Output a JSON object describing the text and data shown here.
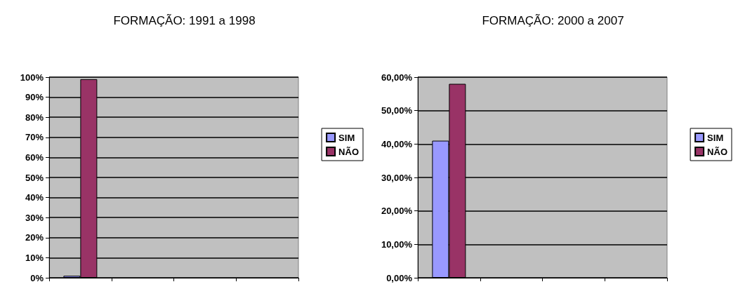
{
  "chart_data": [
    {
      "type": "bar",
      "title": "FORMAÇÃO: 1991 a 1998",
      "categories": [
        null,
        null,
        null,
        null
      ],
      "series": [
        {
          "name": "SIM",
          "color": "#9999ff",
          "values": [
            1,
            null,
            null,
            null
          ]
        },
        {
          "name": "NÃO",
          "color": "#993366",
          "values": [
            99,
            null,
            null,
            null
          ]
        }
      ],
      "ylim": [
        0,
        100
      ],
      "yticks": [
        {
          "value": 0,
          "label": "0%"
        },
        {
          "value": 10,
          "label": "10%"
        },
        {
          "value": 20,
          "label": "20%"
        },
        {
          "value": 30,
          "label": "30%"
        },
        {
          "value": 40,
          "label": "40%"
        },
        {
          "value": 50,
          "label": "50%"
        },
        {
          "value": 60,
          "label": "60%"
        },
        {
          "value": 70,
          "label": "70%"
        },
        {
          "value": 80,
          "label": "80%"
        },
        {
          "value": 90,
          "label": "90%"
        },
        {
          "value": 100,
          "label": "100%"
        }
      ],
      "grid": "y",
      "legend": "right"
    },
    {
      "type": "bar",
      "title": "FORMAÇÃO: 2000 a 2007",
      "categories": [
        null,
        null,
        null,
        null
      ],
      "series": [
        {
          "name": "SIM",
          "color": "#9999ff",
          "values": [
            41,
            null,
            null,
            null
          ]
        },
        {
          "name": "NÃO",
          "color": "#993366",
          "values": [
            58,
            null,
            null,
            null
          ]
        }
      ],
      "ylim": [
        0,
        60
      ],
      "yticks": [
        {
          "value": 0,
          "label": "0,00%"
        },
        {
          "value": 10,
          "label": "10,00%"
        },
        {
          "value": 20,
          "label": "20,00%"
        },
        {
          "value": 30,
          "label": "30,00%"
        },
        {
          "value": 40,
          "label": "40,00%"
        },
        {
          "value": 50,
          "label": "50,00%"
        },
        {
          "value": 60,
          "label": "60,00%"
        }
      ],
      "grid": "y",
      "legend": "right"
    }
  ]
}
